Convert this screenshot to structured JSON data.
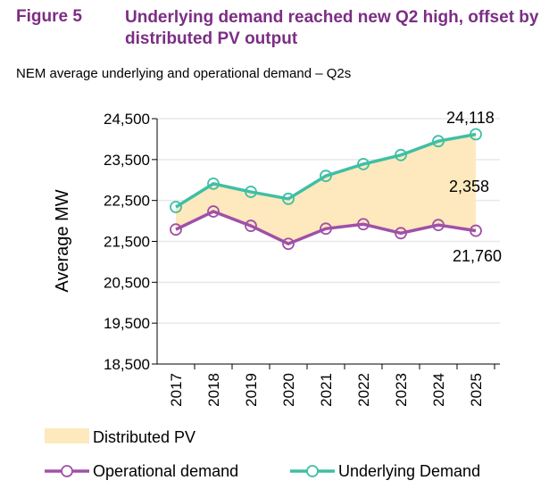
{
  "figure": {
    "label": "Figure 5",
    "title": "Underlying demand reached new Q2 high, offset by distributed PV output",
    "subtitle": "NEM average underlying and operational demand – Q2s"
  },
  "chart_data": {
    "type": "line",
    "ylabel": "Average MW",
    "ylim": [
      18500,
      24500
    ],
    "yticks": [
      "18,500",
      "19,500",
      "20,500",
      "21,500",
      "22,500",
      "23,500",
      "24,500"
    ],
    "ytick_values": [
      18500,
      19500,
      20500,
      21500,
      22500,
      23500,
      24500
    ],
    "categories": [
      "2017",
      "2018",
      "2019",
      "2020",
      "2021",
      "2022",
      "2023",
      "2024",
      "2025"
    ],
    "series": [
      {
        "name": "Operational demand",
        "color": "#a050a8",
        "values": [
          21790,
          22230,
          21880,
          21440,
          21810,
          21920,
          21700,
          21900,
          21760
        ]
      },
      {
        "name": "Underlying Demand",
        "color": "#3fbfa5",
        "values": [
          22340,
          22910,
          22710,
          22540,
          23100,
          23390,
          23610,
          23950,
          24118
        ]
      }
    ],
    "area": {
      "name": "Distributed PV",
      "color": "#fde9bd"
    },
    "annotations": {
      "underlying_last": "24,118",
      "pv_last": "2,358",
      "operational_last": "21,760"
    },
    "grid": true,
    "legend": "bottom"
  }
}
